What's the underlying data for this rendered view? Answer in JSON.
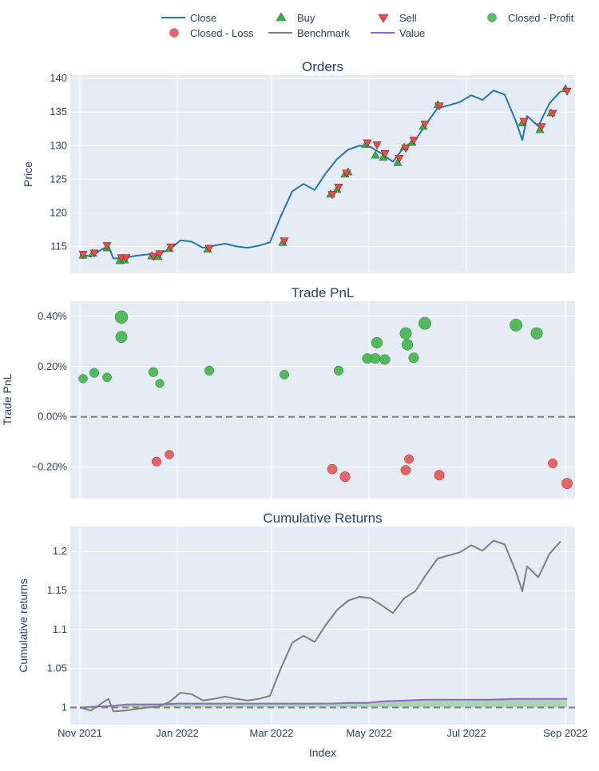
{
  "legend": {
    "entries": [
      {
        "label": "Close",
        "symbol": "line",
        "color": "#1f77b4"
      },
      {
        "label": "Buy",
        "symbol": "triangle-up",
        "color": "#37b13f"
      },
      {
        "label": "Sell",
        "symbol": "triangle-down",
        "color": "#ea4b4b"
      },
      {
        "label": "Closed - Profit",
        "symbol": "circle",
        "color": "#37b13f"
      },
      {
        "label": "Closed - Loss",
        "symbol": "circle",
        "color": "#ea4b4b"
      },
      {
        "label": "Benchmark",
        "symbol": "line",
        "color": "#7f7f7f"
      },
      {
        "label": "Value",
        "symbol": "line",
        "color": "#9467bd"
      }
    ]
  },
  "xaxis": {
    "label": "Index",
    "ticks": [
      "Nov 2021",
      "Jan 2022",
      "Mar 2022",
      "May 2022",
      "Jul 2022",
      "Sep 2022"
    ],
    "tick_dates": [
      "2021-11-01",
      "2022-01-01",
      "2022-03-01",
      "2022-05-01",
      "2022-07-01",
      "2022-09-01"
    ],
    "range": [
      "2021-10-26",
      "2022-09-07"
    ]
  },
  "colors": {
    "plot_bg": "#e5ecf6",
    "grid": "#ffffff",
    "close": "#1f77b4",
    "benchmark": "#7f7f7f",
    "value": "#9467bd",
    "profit": "#37b13f",
    "loss": "#ea4b4b",
    "text": "#2a3f5f"
  },
  "chart_data": [
    {
      "type": "line",
      "title": "Orders",
      "ylabel": "Price",
      "ylim": [
        111,
        140.5
      ],
      "yticks": [
        115,
        120,
        125,
        130,
        135,
        140
      ],
      "series": [
        {
          "name": "Close",
          "x": [
            "2021-11-01",
            "2021-11-08",
            "2021-11-15",
            "2021-11-19",
            "2021-11-22",
            "2021-11-29",
            "2021-12-06",
            "2021-12-13",
            "2021-12-20",
            "2021-12-27",
            "2022-01-03",
            "2022-01-10",
            "2022-01-17",
            "2022-01-24",
            "2022-01-31",
            "2022-02-07",
            "2022-02-14",
            "2022-02-21",
            "2022-02-28",
            "2022-03-07",
            "2022-03-14",
            "2022-03-21",
            "2022-03-28",
            "2022-04-04",
            "2022-04-11",
            "2022-04-18",
            "2022-04-25",
            "2022-05-02",
            "2022-05-09",
            "2022-05-16",
            "2022-05-23",
            "2022-05-30",
            "2022-06-06",
            "2022-06-13",
            "2022-06-20",
            "2022-06-27",
            "2022-07-04",
            "2022-07-11",
            "2022-07-18",
            "2022-07-25",
            "2022-08-01",
            "2022-08-05",
            "2022-08-08",
            "2022-08-15",
            "2022-08-22",
            "2022-08-29"
          ],
          "y": [
            113.8,
            113.5,
            114.6,
            115.0,
            113.2,
            113.3,
            113.6,
            113.8,
            113.9,
            114.5,
            115.9,
            115.7,
            114.8,
            115.1,
            115.4,
            115.0,
            114.8,
            115.1,
            115.6,
            119.6,
            123.2,
            124.3,
            123.4,
            125.9,
            128.0,
            129.4,
            130.0,
            129.8,
            128.8,
            127.6,
            129.8,
            130.8,
            133.3,
            135.6,
            136.0,
            136.5,
            137.5,
            136.8,
            138.2,
            137.6,
            133.6,
            130.8,
            134.4,
            132.9,
            136.3,
            138.1
          ]
        }
      ],
      "buys": {
        "x": [
          "2021-11-03",
          "2021-11-09",
          "2021-11-18",
          "2021-11-26",
          "2021-11-29",
          "2021-12-16",
          "2021-12-20",
          "2021-12-27",
          "2022-01-20",
          "2022-03-08",
          "2022-04-07",
          "2022-04-11",
          "2022-04-16",
          "2022-04-18",
          "2022-04-29",
          "2022-05-05",
          "2022-05-10",
          "2022-05-19",
          "2022-05-23",
          "2022-05-28",
          "2022-06-04",
          "2022-06-13",
          "2022-08-05",
          "2022-08-16",
          "2022-08-23",
          "2022-09-01"
        ],
        "y": [
          113.7,
          114.0,
          114.8,
          112.9,
          113.0,
          113.6,
          113.5,
          114.7,
          114.6,
          115.6,
          122.8,
          123.5,
          125.8,
          126.1,
          130.2,
          128.6,
          128.3,
          127.5,
          129.8,
          130.5,
          132.9,
          136.1,
          133.4,
          132.4,
          134.9,
          138.5
        ]
      },
      "sells": {
        "x": [
          "2021-11-03",
          "2021-11-10",
          "2021-11-18",
          "2021-11-27",
          "2021-11-30",
          "2021-12-17",
          "2021-12-21",
          "2021-12-28",
          "2022-01-21",
          "2022-03-09",
          "2022-04-08",
          "2022-04-12",
          "2022-04-17",
          "2022-04-30",
          "2022-05-06",
          "2022-05-11",
          "2022-05-20",
          "2022-05-24",
          "2022-05-29",
          "2022-06-05",
          "2022-06-14",
          "2022-08-06",
          "2022-08-17",
          "2022-08-24",
          "2022-09-02"
        ],
        "y": [
          113.8,
          114.0,
          115.1,
          113.3,
          113.3,
          113.5,
          113.9,
          114.9,
          114.7,
          115.8,
          122.7,
          123.8,
          125.9,
          130.4,
          130.1,
          128.8,
          128.1,
          129.6,
          130.8,
          133.2,
          135.9,
          133.6,
          132.8,
          134.8,
          138.1
        ]
      }
    },
    {
      "type": "scatter",
      "title": "Trade PnL",
      "ylabel": "Trade PnL",
      "ylim": [
        -0.325,
        0.46
      ],
      "yticks": [
        -0.2,
        0.0,
        0.2,
        0.4
      ],
      "ytick_labels": [
        "−0.20%",
        "0.00%",
        "0.20%",
        "0.40%"
      ],
      "zero_line": 0,
      "profit": {
        "name": "Closed - Profit",
        "x": [
          "2021-11-03",
          "2021-11-10",
          "2021-11-18",
          "2021-11-27",
          "2021-11-27",
          "2021-12-17",
          "2021-12-21",
          "2022-01-21",
          "2022-03-09",
          "2022-04-12",
          "2022-04-30",
          "2022-05-05",
          "2022-05-06",
          "2022-05-11",
          "2022-05-24",
          "2022-05-25",
          "2022-05-29",
          "2022-06-05",
          "2022-08-01",
          "2022-08-14"
        ],
        "y": [
          0.152,
          0.175,
          0.157,
          0.397,
          0.318,
          0.178,
          0.133,
          0.184,
          0.168,
          0.184,
          0.232,
          0.232,
          0.295,
          0.228,
          0.332,
          0.287,
          0.235,
          0.372,
          0.365,
          0.332
        ]
      },
      "loss": {
        "name": "Closed - Loss",
        "x": [
          "2021-12-19",
          "2021-12-27",
          "2022-04-08",
          "2022-04-16",
          "2022-05-24",
          "2022-05-26",
          "2022-06-14",
          "2022-08-24",
          "2022-09-02"
        ],
        "y": [
          -0.178,
          -0.15,
          -0.208,
          -0.238,
          -0.212,
          -0.168,
          -0.232,
          -0.185,
          -0.265
        ]
      }
    },
    {
      "type": "line",
      "title": "Cumulative Returns",
      "ylabel": "Cumulative returns",
      "ylim": [
        0.978,
        1.232
      ],
      "yticks": [
        1,
        1.05,
        1.1,
        1.15,
        1.2
      ],
      "ytick_labels": [
        "1",
        "1.05",
        "1.1",
        "1.15",
        "1.2"
      ],
      "baseline": 1,
      "series": [
        {
          "name": "Benchmark",
          "x": [
            "2021-11-01",
            "2021-11-08",
            "2021-11-15",
            "2021-11-19",
            "2021-11-22",
            "2021-11-29",
            "2021-12-06",
            "2021-12-13",
            "2021-12-20",
            "2021-12-27",
            "2022-01-03",
            "2022-01-10",
            "2022-01-17",
            "2022-01-24",
            "2022-01-31",
            "2022-02-07",
            "2022-02-14",
            "2022-02-21",
            "2022-02-28",
            "2022-03-07",
            "2022-03-14",
            "2022-03-21",
            "2022-03-28",
            "2022-04-04",
            "2022-04-11",
            "2022-04-18",
            "2022-04-25",
            "2022-05-02",
            "2022-05-09",
            "2022-05-16",
            "2022-05-23",
            "2022-05-30",
            "2022-06-06",
            "2022-06-13",
            "2022-06-20",
            "2022-06-27",
            "2022-07-04",
            "2022-07-11",
            "2022-07-18",
            "2022-07-25",
            "2022-08-01",
            "2022-08-05",
            "2022-08-08",
            "2022-08-15",
            "2022-08-22",
            "2022-08-29"
          ],
          "y": [
            1.0,
            0.996,
            1.006,
            1.011,
            0.995,
            0.996,
            0.998,
            1.0,
            1.001,
            1.007,
            1.019,
            1.017,
            1.009,
            1.011,
            1.014,
            1.011,
            1.009,
            1.011,
            1.015,
            1.051,
            1.083,
            1.092,
            1.084,
            1.106,
            1.125,
            1.137,
            1.142,
            1.14,
            1.131,
            1.121,
            1.14,
            1.149,
            1.171,
            1.191,
            1.195,
            1.199,
            1.208,
            1.201,
            1.214,
            1.209,
            1.174,
            1.149,
            1.181,
            1.167,
            1.197,
            1.213
          ]
        },
        {
          "name": "Value",
          "x": [
            "2021-11-01",
            "2021-11-20",
            "2021-12-01",
            "2021-12-20",
            "2022-01-01",
            "2022-01-20",
            "2022-02-15",
            "2022-03-08",
            "2022-04-08",
            "2022-04-18",
            "2022-04-30",
            "2022-05-10",
            "2022-05-24",
            "2022-06-05",
            "2022-06-15",
            "2022-07-15",
            "2022-08-01",
            "2022-08-15",
            "2022-09-02"
          ],
          "y": [
            1.0,
            1.002,
            1.004,
            1.004,
            1.005,
            1.005,
            1.005,
            1.005,
            1.005,
            1.006,
            1.006,
            1.008,
            1.009,
            1.01,
            1.01,
            1.01,
            1.011,
            1.011,
            1.011
          ]
        }
      ]
    }
  ]
}
